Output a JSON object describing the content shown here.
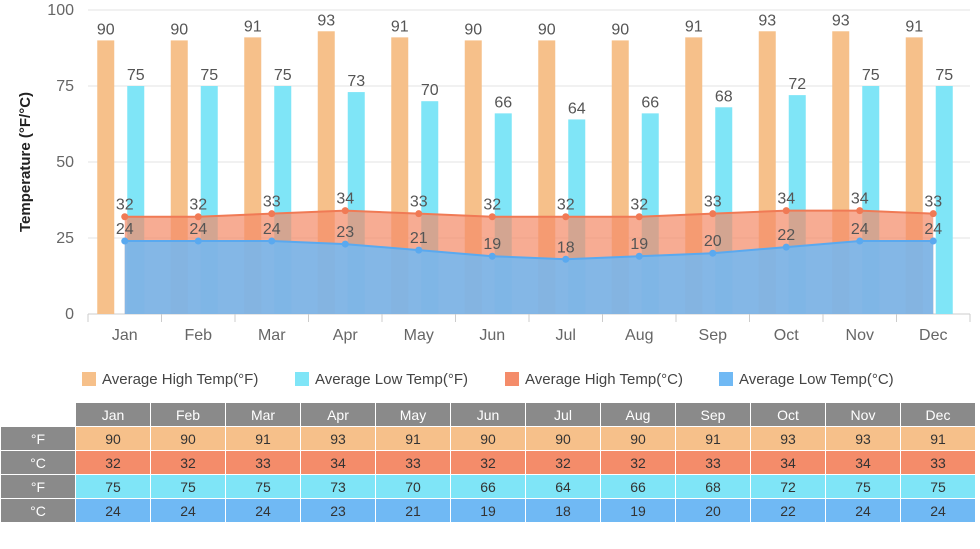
{
  "chart_data": {
    "type": "bar",
    "ylabel": "Temperature (°F/°C)",
    "ylim": [
      0,
      100
    ],
    "yticks": [
      0,
      25,
      50,
      75,
      100
    ],
    "grid": true,
    "legend_position": "bottom",
    "categories": [
      "Jan",
      "Feb",
      "Mar",
      "Apr",
      "May",
      "Jun",
      "Jul",
      "Aug",
      "Sep",
      "Oct",
      "Nov",
      "Dec"
    ],
    "series": [
      {
        "name": "Average High Temp(°F)",
        "kind": "bar",
        "color": "#f6c08a",
        "values": [
          90,
          90,
          91,
          93,
          91,
          90,
          90,
          90,
          91,
          93,
          93,
          91
        ]
      },
      {
        "name": "Average Low Temp(°F)",
        "kind": "bar",
        "color": "#7fe5f7",
        "values": [
          75,
          75,
          75,
          73,
          70,
          66,
          64,
          66,
          68,
          72,
          75,
          75
        ]
      },
      {
        "name": "Average High Temp(°C)",
        "kind": "area",
        "color": "#f48c6a",
        "values": [
          32,
          32,
          33,
          34,
          33,
          32,
          32,
          32,
          33,
          34,
          34,
          33
        ]
      },
      {
        "name": "Average Low Temp(°C)",
        "kind": "area",
        "color": "#70b9f4",
        "values": [
          24,
          24,
          24,
          23,
          21,
          19,
          18,
          19,
          20,
          22,
          24,
          24
        ]
      }
    ]
  },
  "table": {
    "months": [
      "Jan",
      "Feb",
      "Mar",
      "Apr",
      "May",
      "Jun",
      "Jul",
      "Aug",
      "Sep",
      "Oct",
      "Nov",
      "Dec"
    ],
    "rows": [
      {
        "label": "°F",
        "cls": "r-hiF",
        "values": [
          "90",
          "90",
          "91",
          "93",
          "91",
          "90",
          "90",
          "90",
          "91",
          "93",
          "93",
          "91"
        ]
      },
      {
        "label": "°C",
        "cls": "r-hiC",
        "values": [
          "32",
          "32",
          "33",
          "34",
          "33",
          "32",
          "32",
          "32",
          "33",
          "34",
          "34",
          "33"
        ]
      },
      {
        "label": "°F",
        "cls": "r-loF",
        "values": [
          "75",
          "75",
          "75",
          "73",
          "70",
          "66",
          "64",
          "66",
          "68",
          "72",
          "75",
          "75"
        ]
      },
      {
        "label": "°C",
        "cls": "r-loC",
        "values": [
          "24",
          "24",
          "24",
          "23",
          "21",
          "19",
          "18",
          "19",
          "20",
          "22",
          "24",
          "24"
        ]
      }
    ]
  }
}
